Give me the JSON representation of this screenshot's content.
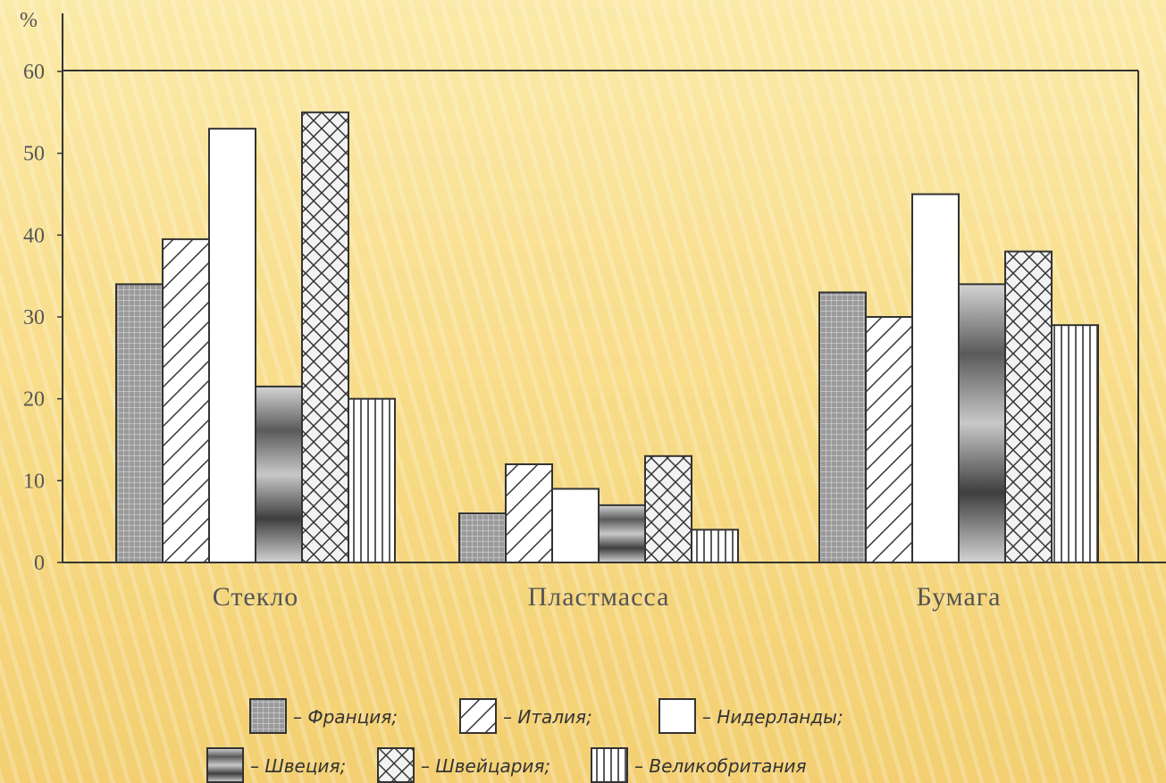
{
  "chart_data": {
    "type": "bar",
    "ylabel": "%",
    "ylim": [
      0,
      60
    ],
    "yticks": [
      "0",
      "10",
      "20",
      "30",
      "40",
      "50",
      "60"
    ],
    "grid": false,
    "categories": [
      "Стекло",
      "Пластмасса",
      "Бумага"
    ],
    "series": [
      {
        "name": "Франция",
        "legend_text": "– Франция;",
        "pattern": "grid",
        "values": [
          34,
          6,
          33
        ]
      },
      {
        "name": "Италия",
        "legend_text": "– Италия;",
        "pattern": "diagonal",
        "values": [
          39.5,
          12,
          30
        ]
      },
      {
        "name": "Нидерланды",
        "legend_text": "– Нидерланды;",
        "pattern": "blank",
        "values": [
          53,
          9,
          45
        ]
      },
      {
        "name": "Швеция",
        "legend_text": "– Швеция;",
        "pattern": "dark-shaded",
        "values": [
          21.5,
          7,
          34
        ]
      },
      {
        "name": "Швейцария",
        "legend_text": "– Швейцария;",
        "pattern": "crosshatch",
        "values": [
          55,
          13,
          38
        ]
      },
      {
        "name": "Великобритания",
        "legend_text": "– Великобритания",
        "pattern": "vertical",
        "values": [
          20,
          4,
          29
        ]
      }
    ],
    "legend_position": "bottom-center"
  }
}
